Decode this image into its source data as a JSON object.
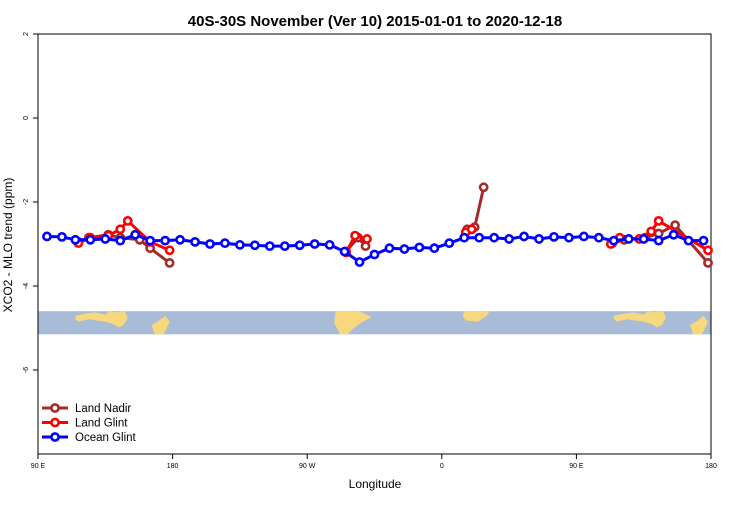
{
  "chart_data": {
    "type": "line",
    "title": "40S-30S November (Ver 10)   2015-01-01 to 2020-12-18",
    "xlabel": "Longitude",
    "ylabel": "XCO2 - MLO trend (ppm)",
    "xlim": [
      90,
      540
    ],
    "ylim": [
      -8,
      2
    ],
    "xticks": [
      {
        "value": 90,
        "label": "90 E"
      },
      {
        "value": 180,
        "label": "180"
      },
      {
        "value": 270,
        "label": "90 W"
      },
      {
        "value": 360,
        "label": "0"
      },
      {
        "value": 450,
        "label": "90 E"
      },
      {
        "value": 540,
        "label": "180"
      }
    ],
    "yticks": [
      {
        "value": -6,
        "label": "-6"
      },
      {
        "value": -4,
        "label": "-4"
      },
      {
        "value": -2,
        "label": "-2"
      },
      {
        "value": 0,
        "label": "0"
      },
      {
        "value": 2,
        "label": "2"
      }
    ],
    "map_strip": {
      "y_top": -4.6,
      "y_bottom": -5.15,
      "ocean_color": "#a8bcd8",
      "land_color": "#f7d87c"
    },
    "legend": {
      "position": "bottom-left"
    },
    "series": [
      {
        "name": "Land Nadir",
        "color": "#a52a2a",
        "segments": [
          [
            [
              117,
              -2.95
            ],
            [
              124,
              -2.85
            ],
            [
              137,
              -2.78
            ],
            [
              145,
              -2.85
            ],
            [
              158,
              -2.9
            ],
            [
              165,
              -3.1
            ],
            [
              178,
              -3.45
            ]
          ],
          [
            [
              296,
              -3.18
            ],
            [
              304,
              -2.85
            ],
            [
              309,
              -3.05
            ]
          ],
          [
            [
              377,
              -2.65
            ],
            [
              382,
              -2.6
            ],
            [
              388,
              -1.65
            ]
          ],
          [
            [
              474,
              -2.98
            ],
            [
              482,
              -2.9
            ],
            [
              496,
              -2.85
            ],
            [
              505,
              -2.75
            ],
            [
              516,
              -2.55
            ],
            [
              538,
              -3.45
            ]
          ]
        ]
      },
      {
        "name": "Land Glint",
        "color": "#ff0000",
        "segments": [
          [
            [
              117,
              -2.98
            ],
            [
              125,
              -2.85
            ],
            [
              137,
              -2.8
            ],
            [
              145,
              -2.65
            ],
            [
              150,
              -2.45
            ],
            [
              165,
              -2.95
            ],
            [
              178,
              -3.15
            ]
          ],
          [
            [
              296,
              -3.2
            ],
            [
              302,
              -2.8
            ],
            [
              310,
              -2.88
            ]
          ],
          [
            [
              376,
              -2.72
            ],
            [
              380,
              -2.65
            ]
          ],
          [
            [
              473,
              -3.0
            ],
            [
              479,
              -2.85
            ],
            [
              492,
              -2.88
            ],
            [
              500,
              -2.7
            ],
            [
              505,
              -2.45
            ],
            [
              538,
              -3.15
            ]
          ]
        ]
      },
      {
        "name": "Ocean Glint",
        "color": "#0000ff",
        "segments": [
          [
            [
              96,
              -2.82
            ],
            [
              106,
              -2.83
            ],
            [
              115,
              -2.9
            ],
            [
              125,
              -2.9
            ],
            [
              135,
              -2.88
            ],
            [
              145,
              -2.92
            ],
            [
              155,
              -2.78
            ],
            [
              165,
              -2.92
            ],
            [
              175,
              -2.92
            ],
            [
              185,
              -2.9
            ],
            [
              195,
              -2.95
            ],
            [
              205,
              -3.0
            ],
            [
              215,
              -2.98
            ],
            [
              225,
              -3.02
            ],
            [
              235,
              -3.03
            ],
            [
              245,
              -3.05
            ],
            [
              255,
              -3.05
            ],
            [
              265,
              -3.03
            ],
            [
              275,
              -3.0
            ],
            [
              285,
              -3.02
            ],
            [
              295,
              -3.18
            ],
            [
              305,
              -3.43
            ],
            [
              315,
              -3.25
            ],
            [
              325,
              -3.1
            ],
            [
              335,
              -3.12
            ],
            [
              345,
              -3.08
            ],
            [
              355,
              -3.1
            ],
            [
              365,
              -2.98
            ],
            [
              375,
              -2.85
            ],
            [
              385,
              -2.85
            ],
            [
              395,
              -2.85
            ],
            [
              405,
              -2.88
            ],
            [
              415,
              -2.82
            ],
            [
              425,
              -2.88
            ],
            [
              435,
              -2.83
            ],
            [
              445,
              -2.85
            ],
            [
              455,
              -2.82
            ],
            [
              465,
              -2.85
            ],
            [
              475,
              -2.92
            ],
            [
              485,
              -2.88
            ],
            [
              495,
              -2.88
            ],
            [
              505,
              -2.92
            ],
            [
              515,
              -2.78
            ],
            [
              525,
              -2.92
            ],
            [
              535,
              -2.92
            ]
          ]
        ]
      }
    ]
  }
}
